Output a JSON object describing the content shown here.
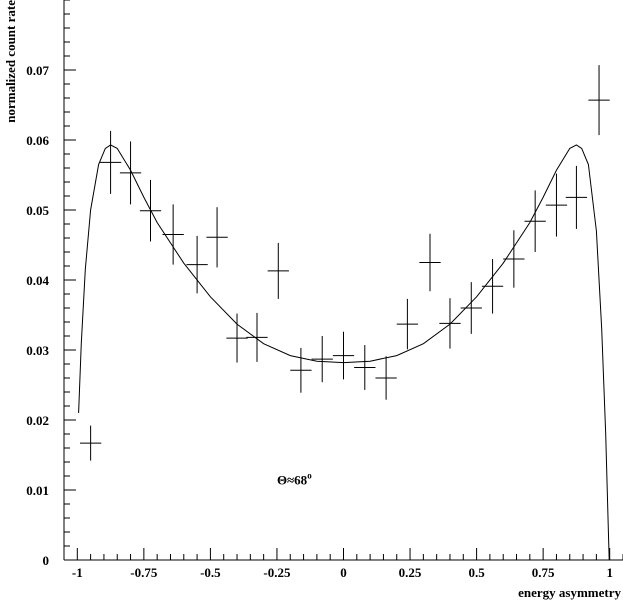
{
  "chart_data": {
    "type": "scatter",
    "xlabel": "energy asymmetry",
    "ylabel": "normalized count rate",
    "xlim": [
      -1.05,
      1.05
    ],
    "ylim": [
      0,
      0.08
    ],
    "x_ticks": [
      -1,
      -0.75,
      -0.5,
      -0.25,
      0,
      0.25,
      0.5,
      0.75,
      1
    ],
    "x_tick_labels": [
      "-1",
      "-0.75",
      "-0.5",
      "-0.25",
      "0",
      "0.25",
      "0.5",
      "0.75",
      "1"
    ],
    "y_ticks": [
      0,
      0.01,
      0.02,
      0.03,
      0.04,
      0.05,
      0.06,
      0.07
    ],
    "y_tick_labels": [
      "0",
      "0.01",
      "0.02",
      "0.03",
      "0.04",
      "0.05",
      "0.06",
      "0.07"
    ],
    "grid": false,
    "annotation": {
      "main": "Θ≈68",
      "sup": "o",
      "x": -0.25,
      "y": 0.0108
    },
    "data_points": [
      {
        "x": -0.95,
        "y": 0.0167,
        "xerr": 0.04,
        "yerr": 0.0025
      },
      {
        "x": -0.875,
        "y": 0.0568,
        "xerr": 0.04,
        "yerr": 0.0045
      },
      {
        "x": -0.8,
        "y": 0.0553,
        "xerr": 0.04,
        "yerr": 0.0045
      },
      {
        "x": -0.725,
        "y": 0.0499,
        "xerr": 0.04,
        "yerr": 0.0044
      },
      {
        "x": -0.64,
        "y": 0.0465,
        "xerr": 0.04,
        "yerr": 0.0043
      },
      {
        "x": -0.55,
        "y": 0.0422,
        "xerr": 0.04,
        "yerr": 0.0041
      },
      {
        "x": -0.475,
        "y": 0.0461,
        "xerr": 0.04,
        "yerr": 0.0043
      },
      {
        "x": -0.4,
        "y": 0.0317,
        "xerr": 0.04,
        "yerr": 0.0035
      },
      {
        "x": -0.325,
        "y": 0.0318,
        "xerr": 0.04,
        "yerr": 0.0035
      },
      {
        "x": -0.245,
        "y": 0.0413,
        "xerr": 0.04,
        "yerr": 0.004
      },
      {
        "x": -0.16,
        "y": 0.0271,
        "xerr": 0.04,
        "yerr": 0.0032
      },
      {
        "x": -0.08,
        "y": 0.0287,
        "xerr": 0.04,
        "yerr": 0.0033
      },
      {
        "x": 0,
        "y": 0.0292,
        "xerr": 0.04,
        "yerr": 0.0034
      },
      {
        "x": 0.08,
        "y": 0.0275,
        "xerr": 0.04,
        "yerr": 0.0032
      },
      {
        "x": 0.16,
        "y": 0.026,
        "xerr": 0.04,
        "yerr": 0.0031
      },
      {
        "x": 0.24,
        "y": 0.0337,
        "xerr": 0.04,
        "yerr": 0.0036
      },
      {
        "x": 0.325,
        "y": 0.0425,
        "xerr": 0.04,
        "yerr": 0.0041
      },
      {
        "x": 0.4,
        "y": 0.0338,
        "xerr": 0.04,
        "yerr": 0.0036
      },
      {
        "x": 0.48,
        "y": 0.036,
        "xerr": 0.04,
        "yerr": 0.0037
      },
      {
        "x": 0.56,
        "y": 0.0391,
        "xerr": 0.04,
        "yerr": 0.0039
      },
      {
        "x": 0.64,
        "y": 0.043,
        "xerr": 0.04,
        "yerr": 0.0041
      },
      {
        "x": 0.72,
        "y": 0.0484,
        "xerr": 0.04,
        "yerr": 0.0044
      },
      {
        "x": 0.8,
        "y": 0.0507,
        "xerr": 0.04,
        "yerr": 0.0045
      },
      {
        "x": 0.875,
        "y": 0.0518,
        "xerr": 0.04,
        "yerr": 0.0045
      },
      {
        "x": 0.96,
        "y": 0.0657,
        "xerr": 0.04,
        "yerr": 0.005
      }
    ],
    "fit_curve": [
      {
        "x": -0.995,
        "y": 0.021
      },
      {
        "x": -0.985,
        "y": 0.031
      },
      {
        "x": -0.97,
        "y": 0.0415
      },
      {
        "x": -0.95,
        "y": 0.05
      },
      {
        "x": -0.92,
        "y": 0.0565
      },
      {
        "x": -0.895,
        "y": 0.0588
      },
      {
        "x": -0.875,
        "y": 0.0593
      },
      {
        "x": -0.85,
        "y": 0.0588
      },
      {
        "x": -0.8,
        "y": 0.0557
      },
      {
        "x": -0.75,
        "y": 0.0518
      },
      {
        "x": -0.7,
        "y": 0.0482
      },
      {
        "x": -0.6,
        "y": 0.0424
      },
      {
        "x": -0.5,
        "y": 0.0376
      },
      {
        "x": -0.4,
        "y": 0.0337
      },
      {
        "x": -0.3,
        "y": 0.0309
      },
      {
        "x": -0.2,
        "y": 0.0292
      },
      {
        "x": -0.1,
        "y": 0.0284
      },
      {
        "x": 0,
        "y": 0.0282
      },
      {
        "x": 0.1,
        "y": 0.0284
      },
      {
        "x": 0.2,
        "y": 0.0292
      },
      {
        "x": 0.3,
        "y": 0.0309
      },
      {
        "x": 0.4,
        "y": 0.0337
      },
      {
        "x": 0.5,
        "y": 0.0376
      },
      {
        "x": 0.6,
        "y": 0.0424
      },
      {
        "x": 0.7,
        "y": 0.0482
      },
      {
        "x": 0.75,
        "y": 0.0518
      },
      {
        "x": 0.8,
        "y": 0.0557
      },
      {
        "x": 0.85,
        "y": 0.0588
      },
      {
        "x": 0.875,
        "y": 0.0593
      },
      {
        "x": 0.895,
        "y": 0.0588
      },
      {
        "x": 0.92,
        "y": 0.0565
      },
      {
        "x": 0.95,
        "y": 0.047
      },
      {
        "x": 0.97,
        "y": 0.033
      },
      {
        "x": 0.985,
        "y": 0.018
      },
      {
        "x": 0.995,
        "y": 0.004
      },
      {
        "x": 0.998,
        "y": 0
      }
    ]
  }
}
